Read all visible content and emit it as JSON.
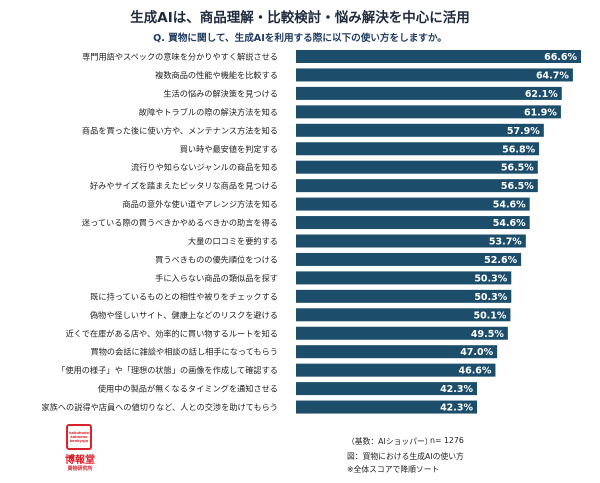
{
  "header": {
    "title": "生成AIは、商品理解・比較検討・悩み解決を中心に活用",
    "question": "Q. 買物に関して、生成AIを利用する際に以下の使い方をしますか。"
  },
  "chart_data": {
    "type": "bar",
    "orientation": "horizontal",
    "categories": [
      "専門用語やスペックの意味を分かりやすく解説させる",
      "複数商品の性能や機能を比較する",
      "生活の悩みの解決策を見つける",
      "故障やトラブルの際の解決方法を知る",
      "商品を買った後に使い方や、メンテナンス方法を知る",
      "買い時や最安値を判定する",
      "流行りや知らないジャンルの商品を知る",
      "好みやサイズを踏まえたピッタリな商品を見つける",
      "商品の意外な使い道やアレンジ方法を知る",
      "迷っている際の買うべきかやめるべきかの助言を得る",
      "大量の口コミを要約する",
      "買うべきものの優先順位をつける",
      "手に入らない商品の類似品を探す",
      "既に持っているものとの相性や被りをチェックする",
      "偽物や怪しいサイト、健康上などのリスクを避ける",
      "近くで在庫がある店や、効率的に買い物するルートを知る",
      "買物の会話に雑談や相談の話し相手になってもらう",
      "「使用の様子」や「理想の状態」の画像を作成して確認する",
      "使用中の製品が無くなるタイミングを通知させる",
      "家族への説得や店員への値切りなど、人との交渉を助けてもらう"
    ],
    "values": [
      66.6,
      64.7,
      62.1,
      61.9,
      57.9,
      56.8,
      56.5,
      56.5,
      54.6,
      54.6,
      53.7,
      52.6,
      50.3,
      50.3,
      50.1,
      49.5,
      47.0,
      46.6,
      42.3,
      42.3
    ],
    "value_labels": [
      "66.6%",
      "64.7%",
      "62.1%",
      "61.9%",
      "57.9%",
      "56.8%",
      "56.5%",
      "56.5%",
      "54.6%",
      "54.6%",
      "53.7%",
      "52.6%",
      "50.3%",
      "50.3%",
      "50.1%",
      "49.5%",
      "47.0%",
      "46.6%",
      "42.3%",
      "42.3%"
    ],
    "sort": "descending",
    "bar_color": "#1c4e6b",
    "value_label_color": "#ffffff",
    "grid": false,
    "legend": "none"
  },
  "footer": {
    "base": "（基数：AIショッパー）",
    "n": "n= 1276",
    "figure": "図：買物における生成AIの使い方",
    "note": "※全体スコアで降順ソート"
  },
  "logo": {
    "mark_text": "hakuhodo\nkaimono\nkenkyujo",
    "name": "博報堂",
    "sub": "買物研究所",
    "color": "#d8232a"
  }
}
